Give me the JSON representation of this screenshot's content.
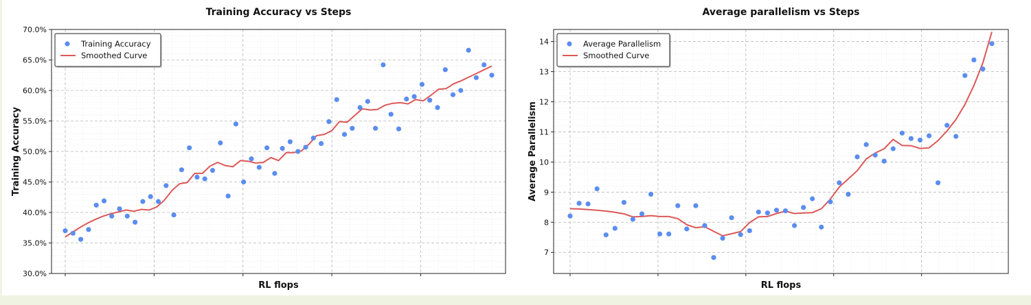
{
  "chart_data": [
    {
      "type": "scatter",
      "title": "Training Accuracy vs Steps",
      "xlabel": "RL flops",
      "ylabel": "Training Accuracy",
      "ylim": [
        0.3,
        0.7
      ],
      "yticks": [
        0.3,
        0.35,
        0.4,
        0.45,
        0.5,
        0.55,
        0.6,
        0.65,
        0.7
      ],
      "ytick_labels": [
        "30.0%",
        "35.0%",
        "40.0%",
        "45.0%",
        "50.0%",
        "55.0%",
        "60.0%",
        "65.0%",
        "70.0%"
      ],
      "x_tick_labels_shown": false,
      "grid": true,
      "legend_position": "top-left",
      "colors": {
        "points": "#5b8def",
        "line": "#dd5757"
      },
      "series": [
        {
          "name": "Training Accuracy",
          "kind": "scatter",
          "values": [
            0.37,
            0.366,
            0.356,
            0.372,
            0.412,
            0.419,
            0.394,
            0.406,
            0.394,
            0.384,
            0.418,
            0.426,
            0.418,
            0.444,
            0.396,
            0.47,
            0.506,
            0.458,
            0.455,
            0.469,
            0.514,
            0.427,
            0.545,
            0.45,
            0.488,
            0.474,
            0.506,
            0.464,
            0.505,
            0.516,
            0.5,
            0.507,
            0.522,
            0.513,
            0.549,
            0.585,
            0.528,
            0.538,
            0.572,
            0.582,
            0.538,
            0.642,
            0.561,
            0.537,
            0.586,
            0.59,
            0.61,
            0.584,
            0.572,
            0.634,
            0.593,
            0.6,
            0.666,
            0.621,
            0.642,
            0.625
          ]
        },
        {
          "name": "Smoothed Curve",
          "kind": "line",
          "values": [
            0.36,
            0.368,
            0.376,
            0.383,
            0.389,
            0.394,
            0.398,
            0.401,
            0.404,
            0.402,
            0.405,
            0.404,
            0.409,
            0.42,
            0.436,
            0.447,
            0.449,
            0.464,
            0.464,
            0.476,
            0.482,
            0.477,
            0.475,
            0.485,
            0.484,
            0.481,
            0.482,
            0.49,
            0.485,
            0.498,
            0.498,
            0.501,
            0.512,
            0.526,
            0.528,
            0.534,
            0.549,
            0.548,
            0.559,
            0.57,
            0.568,
            0.569,
            0.576,
            0.579,
            0.58,
            0.578,
            0.585,
            0.583,
            0.592,
            0.602,
            0.603,
            0.611,
            0.616,
            0.622,
            0.628,
            0.634,
            0.64
          ]
        }
      ]
    },
    {
      "type": "scatter",
      "title": "Average parallelism vs Steps",
      "xlabel": "RL flops",
      "ylabel": "Average Parallelism",
      "ylim": [
        6.3,
        14.4
      ],
      "yticks": [
        7,
        8,
        9,
        10,
        11,
        12,
        13,
        14
      ],
      "ytick_labels": [
        "7",
        "8",
        "9",
        "10",
        "11",
        "12",
        "13",
        "14"
      ],
      "x_tick_labels_shown": false,
      "grid": true,
      "legend_position": "top-left",
      "colors": {
        "points": "#5b8def",
        "line": "#dd5757"
      },
      "series": [
        {
          "name": "Average Parallelism",
          "kind": "scatter",
          "values": [
            8.21,
            8.63,
            8.61,
            9.11,
            7.58,
            7.8,
            8.66,
            8.1,
            8.28,
            8.93,
            7.61,
            7.61,
            8.55,
            7.78,
            8.55,
            7.89,
            6.83,
            7.47,
            8.15,
            7.59,
            7.72,
            8.34,
            8.31,
            8.4,
            8.38,
            7.89,
            8.49,
            8.78,
            7.84,
            8.68,
            9.31,
            8.93,
            10.17,
            10.58,
            10.23,
            10.03,
            10.44,
            10.96,
            10.78,
            10.73,
            10.87,
            9.31,
            11.22,
            10.85,
            12.87,
            13.39,
            13.09,
            13.93
          ]
        },
        {
          "name": "Smoothed Curve",
          "kind": "line",
          "values": [
            8.45,
            8.44,
            8.42,
            8.4,
            8.37,
            8.33,
            8.28,
            8.18,
            8.19,
            8.22,
            8.19,
            8.19,
            8.12,
            7.92,
            7.82,
            7.85,
            7.7,
            7.55,
            7.62,
            7.69,
            7.99,
            8.18,
            8.19,
            8.29,
            8.37,
            8.29,
            8.31,
            8.32,
            8.45,
            8.77,
            9.17,
            9.44,
            9.71,
            10.1,
            10.3,
            10.44,
            10.75,
            10.55,
            10.54,
            10.45,
            10.47,
            10.71,
            11.03,
            11.41,
            11.91,
            12.54,
            13.29,
            14.32
          ]
        }
      ]
    }
  ]
}
